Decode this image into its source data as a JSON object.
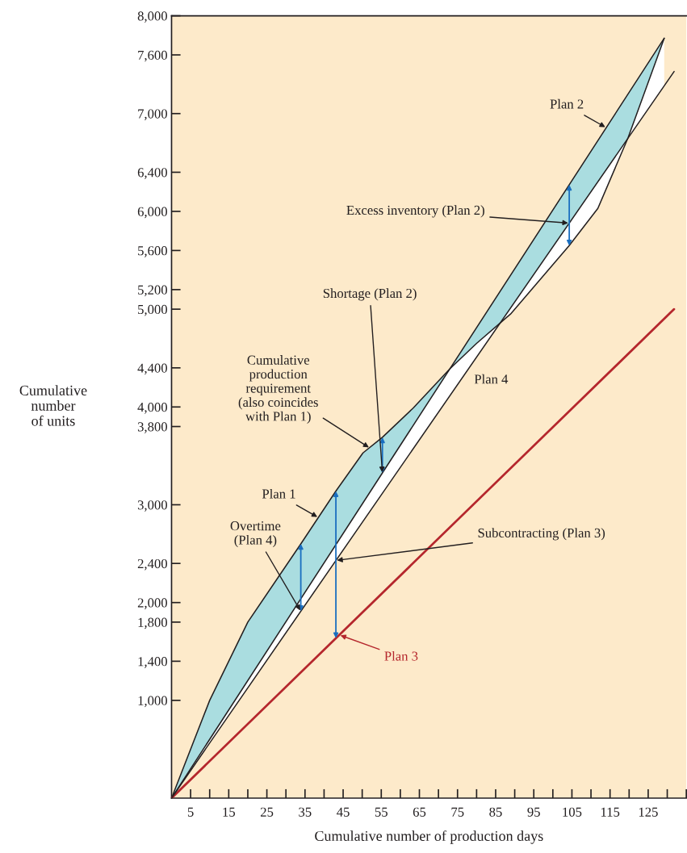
{
  "chart_data": {
    "type": "line",
    "xlabel": "Cumulative number of production days",
    "ylabel": "Cumulative\nnumber\nof units",
    "xlim": [
      0,
      135
    ],
    "ylim": [
      0,
      8000
    ],
    "xticks": [
      5,
      {
        "value": 10,
        "label": null
      },
      15,
      {
        "value": 20,
        "label": null
      },
      25,
      {
        "value": 30,
        "label": null
      },
      35,
      {
        "value": 40,
        "label": null
      },
      45,
      {
        "value": 50,
        "label": null
      },
      55,
      {
        "value": 60,
        "label": null
      },
      65,
      {
        "value": 70,
        "label": null
      },
      75,
      {
        "value": 80,
        "label": null
      },
      85,
      {
        "value": 90,
        "label": null
      },
      95,
      {
        "value": 100,
        "label": null
      },
      105,
      {
        "value": 110,
        "label": null
      },
      115,
      {
        "value": 120,
        "label": null
      },
      125,
      {
        "value": 130,
        "label": null
      },
      {
        "value": 135,
        "label": null
      }
    ],
    "yticks": [
      {
        "value": 1000,
        "label": "1,000"
      },
      {
        "value": 1400,
        "label": "1,400"
      },
      {
        "value": 1800,
        "label": "1,800"
      },
      {
        "value": 2000,
        "label": "2,000"
      },
      {
        "value": 2400,
        "label": "2,400"
      },
      {
        "value": 3000,
        "label": "3,000"
      },
      {
        "value": 3800,
        "label": "3,800"
      },
      {
        "value": 4000,
        "label": "4,000"
      },
      {
        "value": 4400,
        "label": "4,400"
      },
      {
        "value": 5000,
        "label": "5,000"
      },
      {
        "value": 5200,
        "label": "5,200"
      },
      {
        "value": 5600,
        "label": "5,600"
      },
      {
        "value": 6000,
        "label": "6,000"
      },
      {
        "value": 6400,
        "label": "6,400"
      },
      {
        "value": 7000,
        "label": "7,000"
      },
      {
        "value": 7600,
        "label": "7,600"
      },
      {
        "value": 8000,
        "label": "8,000"
      }
    ],
    "grid": false,
    "legend": false,
    "marker": "none",
    "line_style": "solid",
    "series": [
      {
        "name": "Plan 1",
        "color": "#231f20",
        "x": [
          0,
          10,
          15,
          20,
          33.9,
          43.1,
          50.2,
          55.3,
          63.4,
          73,
          80,
          88.9,
          104.3,
          111.8,
          119.7,
          129.2
        ],
        "values": [
          0,
          1000,
          1400,
          1800,
          2600,
          3140,
          3530,
          3690,
          3990,
          4390,
          4650,
          4950,
          5650,
          6030,
          6750,
          7770
        ]
      },
      {
        "name": "Plan 2",
        "color": "#231f20",
        "x": [
          0,
          129.2
        ],
        "values": [
          0,
          7770
        ]
      },
      {
        "name": "Plan 3",
        "color": "#b5272d",
        "x": [
          0,
          131.8
        ],
        "values": [
          0,
          5000
        ]
      },
      {
        "name": "Plan 4",
        "color": "#231f20",
        "x": [
          0,
          131.8
        ],
        "values": [
          0,
          7430
        ]
      }
    ],
    "annotations": [
      {
        "text": "Cumulative\nproduction\nrequirement\n(also coincides\nwith Plan 1)",
        "x": 52,
        "y": 3580
      },
      {
        "text": "Overtime\n(Plan 4)",
        "x": 33.9,
        "y": 1910
      },
      {
        "text": "Subcontracting (Plan 3)",
        "x": 43.1,
        "y": 2430
      },
      {
        "text": "Shortage (Plan 2)",
        "x": 55.3,
        "y": 3320
      },
      {
        "text": "Excess inventory (Plan 2)",
        "x": 104.3,
        "y": 5880
      }
    ]
  }
}
